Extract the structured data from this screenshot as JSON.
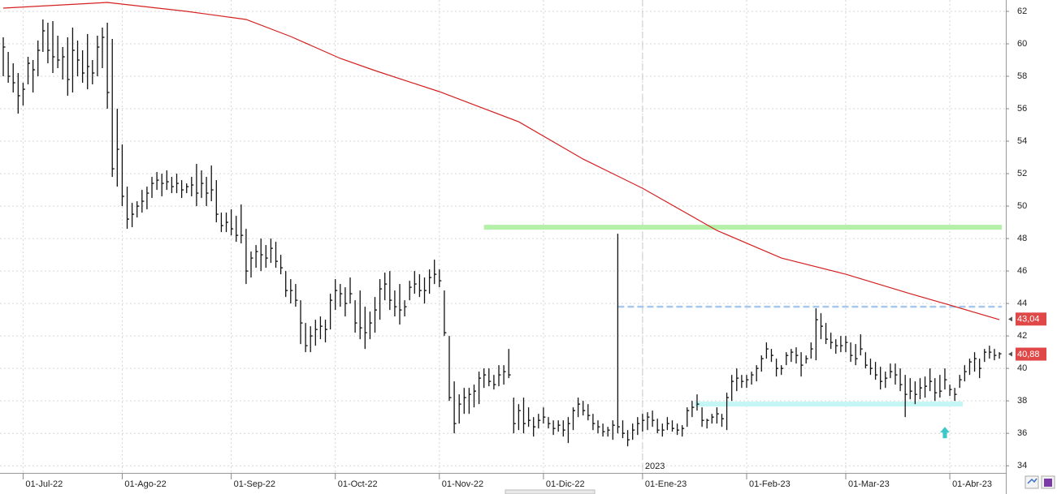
{
  "chart_data": {
    "type": "ohlc",
    "high": [
      60.4,
      59.5,
      58.8,
      58.2,
      57.6,
      59.2,
      59.0,
      60.2,
      61.5,
      61.3,
      61.4,
      60.5,
      59.8,
      60.4,
      61.0,
      60.2,
      59.6,
      60.6,
      59.0,
      60.5,
      61.0,
      61.3,
      60.3,
      56.0,
      53.8,
      51.2,
      50.2,
      50.3,
      51.0,
      51.2,
      51.8,
      52.1,
      52.0,
      52.2,
      51.8,
      52.0,
      51.6,
      51.4,
      51.8,
      52.6,
      52.2,
      51.8,
      52.5,
      51.6,
      49.6,
      49.6,
      49.8,
      49.4,
      50.1,
      48.6,
      47.2,
      47.6,
      48.0,
      47.6,
      48.0,
      47.8,
      47.0,
      46.0,
      45.5,
      45.2,
      44.2,
      42.8,
      42.6,
      43.0,
      43.2,
      43.0,
      44.6,
      45.5,
      45.2,
      45.0,
      45.6,
      44.2,
      44.8,
      43.8,
      43.5,
      44.4,
      45.5,
      45.9,
      46.0,
      44.8,
      45.2,
      44.2,
      45.4,
      46.0,
      45.8,
      45.6,
      46.1,
      46.7,
      46.1,
      44.8,
      42.0,
      39.2,
      38.4,
      38.8,
      38.8,
      39.0,
      39.8,
      40.0,
      40.0,
      39.6,
      40.2,
      40.2,
      41.2,
      38.2,
      37.8,
      38.2,
      37.6,
      37.0,
      37.2,
      37.6,
      37.0,
      36.8,
      36.8,
      36.8,
      37.0,
      37.6,
      38.2,
      38.0,
      37.8,
      37.2,
      36.8,
      36.6,
      36.4,
      36.8,
      48.3,
      36.8,
      36.2,
      36.6,
      37.0,
      37.2,
      37.3,
      37.4,
      36.9,
      36.6,
      37.0,
      36.8,
      36.6,
      36.5,
      37.6,
      38.0,
      38.4,
      37.6,
      36.9,
      37.2,
      37.6,
      37.2,
      38.5,
      39.6,
      40.0,
      39.6,
      39.6,
      39.8,
      40.2,
      40.8,
      41.6,
      41.2,
      40.6,
      40.2,
      41.0,
      41.2,
      41.3,
      41.0,
      40.8,
      41.6,
      43.7,
      43.4,
      42.8,
      42.2,
      41.8,
      42.0,
      42.0,
      41.6,
      41.5,
      42.1,
      41.0,
      40.6,
      40.4,
      40.1,
      39.8,
      40.3,
      40.3,
      40.0,
      39.6,
      39.4,
      39.2,
      39.4,
      39.5,
      40.0,
      39.4,
      39.6,
      40.0,
      39.0,
      38.8,
      39.6,
      40.2,
      40.6,
      41.0,
      40.6,
      41.2,
      41.4,
      41.2,
      41.0
    ],
    "low": [
      58.0,
      57.6,
      57.0,
      55.7,
      56.2,
      57.5,
      57.0,
      58.0,
      59.5,
      58.8,
      58.2,
      58.5,
      57.8,
      56.8,
      57.0,
      58.0,
      57.6,
      57.2,
      57.5,
      58.0,
      58.5,
      56.0,
      51.8,
      51.2,
      50.0,
      48.6,
      48.7,
      49.3,
      49.6,
      49.8,
      50.5,
      51.0,
      50.6,
      51.0,
      50.8,
      50.8,
      50.5,
      50.8,
      50.6,
      50.0,
      50.5,
      50.0,
      50.3,
      49.0,
      48.4,
      48.4,
      48.2,
      47.8,
      47.7,
      45.2,
      45.6,
      46.2,
      46.0,
      46.2,
      46.5,
      46.2,
      45.8,
      44.4,
      44.0,
      43.8,
      41.5,
      41.0,
      41.0,
      41.4,
      41.8,
      41.6,
      42.4,
      43.6,
      43.8,
      43.2,
      44.0,
      42.2,
      41.8,
      41.2,
      41.8,
      42.2,
      43.0,
      44.2,
      43.6,
      43.2,
      42.7,
      43.2,
      44.2,
      44.6,
      44.4,
      44.0,
      44.6,
      45.2,
      45.0,
      42.0,
      38.0,
      36.0,
      36.6,
      37.2,
      37.2,
      37.6,
      37.8,
      38.8,
      38.9,
      38.7,
      38.9,
      39.0,
      39.4,
      36.0,
      36.2,
      36.0,
      36.4,
      35.8,
      36.3,
      36.6,
      36.3,
      35.9,
      36.1,
      35.8,
      35.4,
      36.2,
      37.0,
      37.1,
      36.8,
      36.2,
      36.0,
      35.8,
      35.8,
      35.6,
      36.0,
      35.7,
      35.2,
      35.6,
      35.9,
      36.1,
      36.2,
      36.4,
      36.0,
      35.8,
      36.2,
      36.1,
      35.9,
      35.8,
      36.4,
      37.0,
      37.4,
      36.4,
      36.3,
      36.6,
      36.6,
      36.4,
      36.2,
      38.0,
      38.6,
      38.8,
      38.8,
      39.0,
      39.2,
      39.8,
      40.6,
      40.4,
      39.5,
      39.6,
      40.2,
      40.4,
      40.3,
      39.5,
      40.3,
      40.6,
      40.5,
      41.8,
      41.5,
      41.2,
      40.9,
      41.0,
      41.0,
      40.4,
      40.2,
      40.8,
      40.0,
      39.6,
      39.3,
      38.7,
      38.8,
      39.4,
      39.0,
      38.6,
      37.0,
      38.1,
      37.8,
      38.1,
      38.2,
      38.6,
      38.0,
      38.2,
      38.7,
      38.3,
      38.0,
      38.8,
      39.2,
      39.6,
      39.8,
      39.4,
      40.4,
      40.6,
      40.5,
      40.6
    ],
    "close": [
      59.8,
      58.0,
      57.6,
      56.8,
      57.2,
      58.8,
      58.4,
      59.6,
      60.8,
      59.6,
      59.2,
      59.0,
      59.2,
      57.8,
      59.6,
      59.0,
      58.2,
      58.6,
      58.2,
      59.8,
      60.4,
      57.0,
      52.3,
      53.5,
      50.6,
      49.2,
      49.5,
      50.0,
      50.3,
      50.8,
      51.4,
      51.6,
      51.4,
      51.5,
      51.2,
      51.4,
      51.0,
      51.2,
      51.3,
      50.8,
      51.4,
      50.8,
      51.0,
      49.5,
      48.8,
      49.0,
      48.6,
      48.2,
      48.2,
      46.0,
      46.8,
      47.2,
      47.0,
      46.8,
      47.4,
      46.6,
      46.2,
      44.8,
      44.8,
      44.2,
      42.8,
      41.4,
      42.0,
      42.4,
      42.6,
      42.4,
      44.2,
      44.8,
      44.6,
      44.0,
      44.6,
      42.8,
      42.5,
      42.2,
      42.8,
      43.6,
      44.9,
      45.2,
      44.2,
      43.8,
      43.6,
      43.8,
      45.0,
      45.2,
      44.8,
      44.8,
      45.6,
      45.8,
      45.4,
      42.2,
      38.2,
      36.6,
      37.8,
      38.2,
      38.4,
      38.6,
      39.4,
      39.6,
      39.2,
      39.0,
      39.6,
      39.8,
      39.6,
      36.6,
      37.4,
      36.6,
      36.8,
      36.4,
      36.8,
      37.0,
      36.6,
      36.3,
      36.5,
      36.2,
      36.6,
      37.4,
      37.8,
      37.4,
      37.1,
      36.6,
      36.4,
      36.1,
      36.2,
      36.5,
      36.4,
      36.0,
      35.6,
      36.2,
      36.6,
      36.8,
      37.0,
      36.8,
      36.2,
      36.2,
      36.6,
      36.3,
      36.2,
      36.3,
      37.4,
      37.6,
      37.8,
      36.8,
      36.8,
      37.0,
      37.2,
      36.9,
      38.2,
      39.2,
      39.4,
      39.2,
      39.3,
      39.6,
      40.0,
      40.6,
      41.2,
      40.8,
      40.0,
      40.0,
      40.8,
      41.0,
      40.8,
      40.2,
      40.6,
      41.2,
      43.0,
      42.6,
      41.8,
      41.6,
      41.4,
      41.4,
      41.6,
      40.8,
      40.6,
      41.2,
      40.2,
      40.0,
      39.6,
      39.2,
      39.4,
      39.8,
      39.6,
      39.0,
      38.4,
      38.6,
      38.4,
      38.8,
      38.9,
      39.2,
      38.5,
      38.6,
      39.3,
      38.7,
      38.4,
      39.3,
      39.8,
      40.4,
      40.6,
      40.0,
      41.0,
      41.0,
      40.8,
      40.9
    ],
    "bar_color": "#111111",
    "ma": {
      "x": [
        0,
        21,
        37,
        49,
        58,
        68,
        75,
        88,
        104,
        117,
        129,
        144,
        157,
        170,
        183,
        191,
        201
      ],
      "values": [
        62.2,
        62.55,
        62.0,
        61.5,
        60.45,
        59.1,
        58.35,
        57.05,
        55.2,
        52.9,
        51.1,
        48.5,
        46.8,
        45.8,
        44.6,
        43.9,
        43.0
      ],
      "color": "#d42020"
    },
    "levels": [
      {
        "value": 48.7,
        "from": 97,
        "to": 201.5,
        "color": "#b4f0a8",
        "style": "solid"
      },
      {
        "value": 43.8,
        "from": 124,
        "to": 201.5,
        "color": "#a8c8ec",
        "style": "dashed"
      },
      {
        "value": 37.8,
        "from": 139.5,
        "to": 193.6,
        "color": "#c4f6f6",
        "style": "solid"
      }
    ],
    "price_labels": [
      {
        "value": 43.04,
        "label": "43,04",
        "color": "#e04848"
      },
      {
        "value": 40.88,
        "label": "40,88",
        "color": "#e04848"
      }
    ],
    "markers": [
      {
        "x": 190,
        "value": 36.0,
        "color": "#3cc8c8"
      }
    ],
    "year_divider": {
      "x": 129,
      "label": "2023"
    },
    "xlim": [
      -0.66,
      202.3
    ],
    "xticks": [
      {
        "value": 4,
        "label": "01-Jul-22"
      },
      {
        "value": 24,
        "label": "01-Ago-22"
      },
      {
        "value": 46,
        "label": "01-Sep-22"
      },
      {
        "value": 67,
        "label": "01-Oct-22"
      },
      {
        "value": 88,
        "label": "01-Nov-22"
      },
      {
        "value": 109,
        "label": "01-Dic-22"
      },
      {
        "value": 129,
        "label": "01-Ene-23"
      },
      {
        "value": 150,
        "label": "01-Feb-23"
      },
      {
        "value": 170,
        "label": "01-Mar-23"
      },
      {
        "value": 191,
        "label": "01-Abr-23"
      }
    ],
    "ylim": [
      34.0603,
      62
    ],
    "yticks": [
      34,
      36,
      38,
      40,
      42,
      44,
      46,
      48,
      50,
      52,
      54,
      56,
      58,
      60,
      62
    ],
    "grid": true
  }
}
